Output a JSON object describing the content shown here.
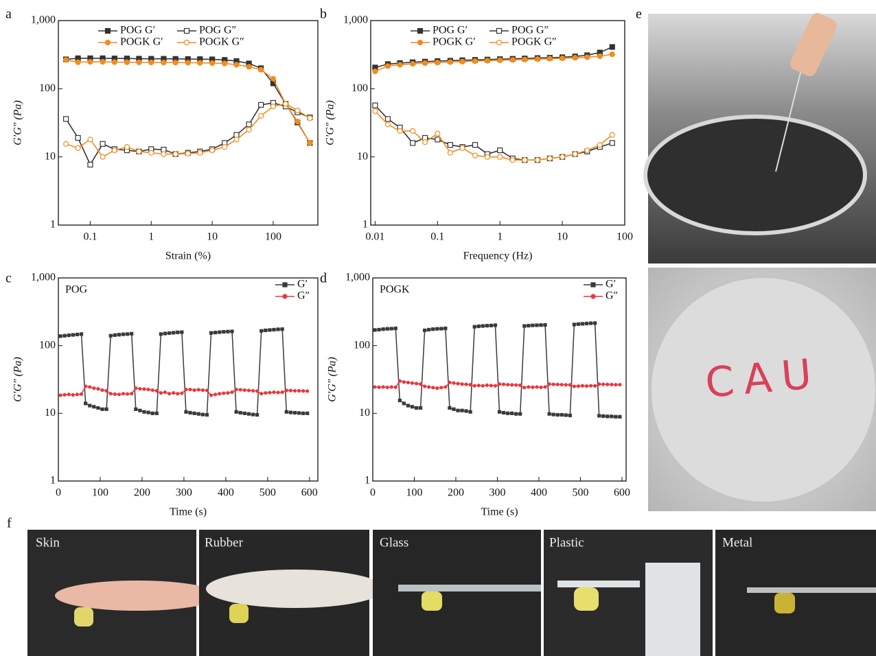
{
  "chart_data": [
    {
      "type": "line",
      "panel": "a",
      "xlabel": "Strain (%)",
      "ylabel": "G′G″ (Pa)",
      "xscale": "log",
      "yscale": "log",
      "x": [
        0.04,
        0.063,
        0.1,
        0.16,
        0.25,
        0.4,
        0.63,
        1,
        1.6,
        2.5,
        4,
        6.3,
        10,
        16,
        25,
        40,
        63,
        100,
        160,
        250,
        400
      ],
      "xlim": [
        0.03,
        540
      ],
      "xticks": [
        0.1,
        1,
        10,
        100
      ],
      "ylim": [
        1,
        1000
      ],
      "yticks": [
        1,
        10,
        100,
        {
          "value": 1000,
          "label": "1,000"
        }
      ],
      "legend": "top",
      "series": [
        {
          "name": "POG G′",
          "color": "#333333",
          "marker": "square",
          "marker_fill": "solid",
          "values": [
            270,
            280,
            280,
            280,
            278,
            278,
            276,
            275,
            275,
            274,
            273,
            272,
            270,
            265,
            255,
            235,
            200,
            120,
            60,
            32,
            16
          ]
        },
        {
          "name": "POG G″",
          "color": "#333333",
          "marker": "square",
          "marker_fill": "open",
          "values": [
            36,
            19,
            7.7,
            15.5,
            13,
            12.5,
            12,
            13,
            12.8,
            11,
            11.5,
            12,
            13,
            16,
            21,
            30,
            58,
            62,
            55,
            45,
            38
          ]
        },
        {
          "name": "POGK G′",
          "color": "#f28c1c",
          "marker": "circle",
          "marker_fill": "solid",
          "values": [
            265,
            245,
            248,
            248,
            246,
            245,
            244,
            243,
            242,
            242,
            241,
            240,
            238,
            235,
            225,
            210,
            190,
            140,
            60,
            33,
            16
          ]
        },
        {
          "name": "POGK G″",
          "color": "#f28c1c",
          "marker": "circle",
          "marker_fill": "open",
          "values": [
            15.5,
            13.5,
            18,
            10,
            12.5,
            14,
            12,
            11.5,
            11,
            11,
            11.2,
            11.5,
            12.5,
            14,
            18,
            25,
            40,
            55,
            60,
            48,
            37
          ]
        }
      ]
    },
    {
      "type": "line",
      "panel": "b",
      "xlabel": "Frequency (Hz)",
      "ylabel": "G′G″ (Pa)",
      "xscale": "log",
      "yscale": "log",
      "x": [
        0.01,
        0.016,
        0.025,
        0.04,
        0.063,
        0.1,
        0.16,
        0.25,
        0.4,
        0.63,
        1,
        1.6,
        2.5,
        4,
        6.3,
        10,
        16,
        25,
        40,
        63
      ],
      "xlim": [
        0.0085,
        100
      ],
      "xticks": [
        0.01,
        0.1,
        1,
        10,
        100
      ],
      "ylim": [
        1,
        1000
      ],
      "yticks": [
        1,
        10,
        100,
        {
          "value": 1000,
          "label": "1,000"
        }
      ],
      "legend": "top",
      "series": [
        {
          "name": "POG G′",
          "color": "#333333",
          "marker": "square",
          "marker_fill": "solid",
          "values": [
            205,
            230,
            238,
            245,
            250,
            255,
            258,
            262,
            265,
            268,
            272,
            275,
            278,
            282,
            285,
            290,
            298,
            310,
            340,
            410
          ]
        },
        {
          "name": "POG G″",
          "color": "#333333",
          "marker": "square",
          "marker_fill": "open",
          "values": [
            57,
            36,
            27,
            16,
            19,
            18,
            15,
            14,
            15,
            11,
            12.5,
            9.5,
            9,
            9,
            9.5,
            10,
            11,
            12,
            14,
            16
          ]
        },
        {
          "name": "POGK G′",
          "color": "#f28c1c",
          "marker": "circle",
          "marker_fill": "solid",
          "values": [
            180,
            215,
            225,
            232,
            238,
            242,
            246,
            250,
            254,
            258,
            262,
            265,
            268,
            272,
            276,
            280,
            285,
            290,
            300,
            320
          ]
        },
        {
          "name": "POGK G″",
          "color": "#f28c1c",
          "marker": "circle",
          "marker_fill": "open",
          "values": [
            47,
            30,
            24,
            24,
            16.5,
            22,
            11.5,
            13.5,
            10.5,
            10,
            10,
            9,
            9,
            9,
            9.5,
            10,
            11,
            12.5,
            15,
            21
          ]
        }
      ]
    },
    {
      "type": "line",
      "panel": "c",
      "annotation": "POG",
      "xlabel": "Time (s)",
      "ylabel": "G′G″ (Pa)",
      "yscale": "log",
      "x": [
        5,
        15,
        25,
        35,
        45,
        55,
        65,
        75,
        85,
        95,
        105,
        115,
        125,
        135,
        145,
        155,
        165,
        175,
        185,
        195,
        205,
        215,
        225,
        235,
        245,
        255,
        265,
        275,
        285,
        295,
        305,
        315,
        325,
        335,
        345,
        355,
        365,
        375,
        385,
        395,
        405,
        415,
        425,
        435,
        445,
        455,
        465,
        475,
        485,
        495,
        505,
        515,
        525,
        535,
        545,
        555,
        565,
        575,
        585,
        595
      ],
      "xlim": [
        0,
        620
      ],
      "xticks": [
        0,
        100,
        200,
        300,
        400,
        500,
        600
      ],
      "ylim": [
        1,
        1000
      ],
      "yticks": [
        1,
        10,
        100,
        {
          "value": 1000,
          "label": "1,000"
        }
      ],
      "legend": "upper right",
      "series": [
        {
          "name": "G′",
          "color": "#3a3a3a",
          "marker": "square",
          "marker_fill": "solid",
          "values": [
            138,
            140,
            142,
            144,
            146,
            148,
            14,
            13,
            12.5,
            12,
            11.5,
            11.5,
            140,
            143,
            145,
            147,
            148,
            150,
            11.5,
            11,
            10.5,
            10.3,
            10,
            10,
            148,
            151,
            153,
            155,
            157,
            158,
            10.5,
            10.2,
            10,
            9.8,
            9.6,
            9.5,
            154,
            156,
            158,
            160,
            161,
            162,
            10.5,
            10.2,
            10,
            9.8,
            9.6,
            9.5,
            165,
            168,
            170,
            172,
            174,
            175,
            10.5,
            10.3,
            10.2,
            10.1,
            10,
            10
          ]
        },
        {
          "name": "G″",
          "color": "#e8383d",
          "marker": "circle",
          "marker_fill": "solid",
          "values": [
            18.5,
            18.8,
            19,
            18.7,
            19,
            19.2,
            25,
            24.5,
            23.5,
            23,
            22,
            21.5,
            19.5,
            19.2,
            19,
            19.5,
            19.3,
            19.5,
            23.5,
            23,
            22.8,
            22.5,
            22,
            21.5,
            20,
            20.5,
            19.5,
            20,
            19.5,
            19.8,
            22.5,
            22.5,
            22,
            22.3,
            22,
            21.8,
            18.5,
            19,
            19.5,
            19.8,
            20,
            20.5,
            22.5,
            22.3,
            22,
            21.8,
            21.5,
            21.3,
            19.5,
            20,
            20.2,
            20.5,
            20.3,
            20.5,
            21.8,
            21.7,
            21.5,
            21.5,
            21.4,
            21.3
          ]
        }
      ]
    },
    {
      "type": "line",
      "panel": "d",
      "annotation": "POGK",
      "xlabel": "Time (s)",
      "ylabel": "G′G″ (Pa)",
      "yscale": "log",
      "x": [
        5,
        15,
        25,
        35,
        45,
        55,
        65,
        75,
        85,
        95,
        105,
        115,
        125,
        135,
        145,
        155,
        165,
        175,
        185,
        195,
        205,
        215,
        225,
        235,
        245,
        255,
        265,
        275,
        285,
        295,
        305,
        315,
        325,
        335,
        345,
        355,
        365,
        375,
        385,
        395,
        405,
        415,
        425,
        435,
        445,
        455,
        465,
        475,
        485,
        495,
        505,
        515,
        525,
        535,
        545,
        555,
        565,
        575,
        585,
        595
      ],
      "xlim": [
        0,
        610
      ],
      "xticks": [
        0,
        100,
        200,
        300,
        400,
        500,
        600
      ],
      "ylim": [
        1,
        1000
      ],
      "yticks": [
        1,
        10,
        100,
        {
          "value": 1000,
          "label": "1,000"
        }
      ],
      "legend": "upper right",
      "series": [
        {
          "name": "G′",
          "color": "#3a3a3a",
          "marker": "square",
          "marker_fill": "solid",
          "values": [
            170,
            172,
            175,
            177,
            178,
            180,
            15.5,
            14,
            13,
            12.5,
            12,
            12,
            168,
            172,
            175,
            177,
            178,
            180,
            12,
            11.5,
            11,
            11,
            10.8,
            10.5,
            190,
            193,
            195,
            197,
            198,
            200,
            10.5,
            10.2,
            10,
            10,
            9.8,
            9.8,
            195,
            197,
            199,
            200,
            201,
            202,
            9.8,
            9.6,
            9.5,
            9.5,
            9.4,
            9.3,
            205,
            208,
            210,
            212,
            214,
            215,
            9.2,
            9.1,
            9,
            9,
            8.9,
            8.9
          ]
        },
        {
          "name": "G″",
          "color": "#e8383d",
          "marker": "circle",
          "marker_fill": "solid",
          "values": [
            24.5,
            24.3,
            24.5,
            24.2,
            24.5,
            24.3,
            30,
            29,
            28.5,
            28,
            27.5,
            27,
            25,
            24.5,
            24,
            23.5,
            24,
            24.5,
            28.5,
            28,
            27.5,
            27,
            26.8,
            26.5,
            25.5,
            25.8,
            25.5,
            26,
            25.7,
            25.5,
            27,
            26.8,
            26.5,
            26.3,
            26.2,
            26,
            24,
            24.5,
            24.3,
            24.5,
            24.2,
            24.5,
            27,
            26.8,
            26.7,
            26.5,
            26.4,
            26.3,
            25,
            25.2,
            25.5,
            25.3,
            25.5,
            25.4,
            27,
            26.8,
            26.7,
            26.6,
            26.5,
            26.5
          ]
        }
      ]
    }
  ],
  "photos": {
    "panel_e": "e",
    "writing": "CAU",
    "panel_f": "f",
    "labels": [
      "Skin",
      "Rubber",
      "Glass",
      "Plastic",
      "Metal"
    ]
  }
}
